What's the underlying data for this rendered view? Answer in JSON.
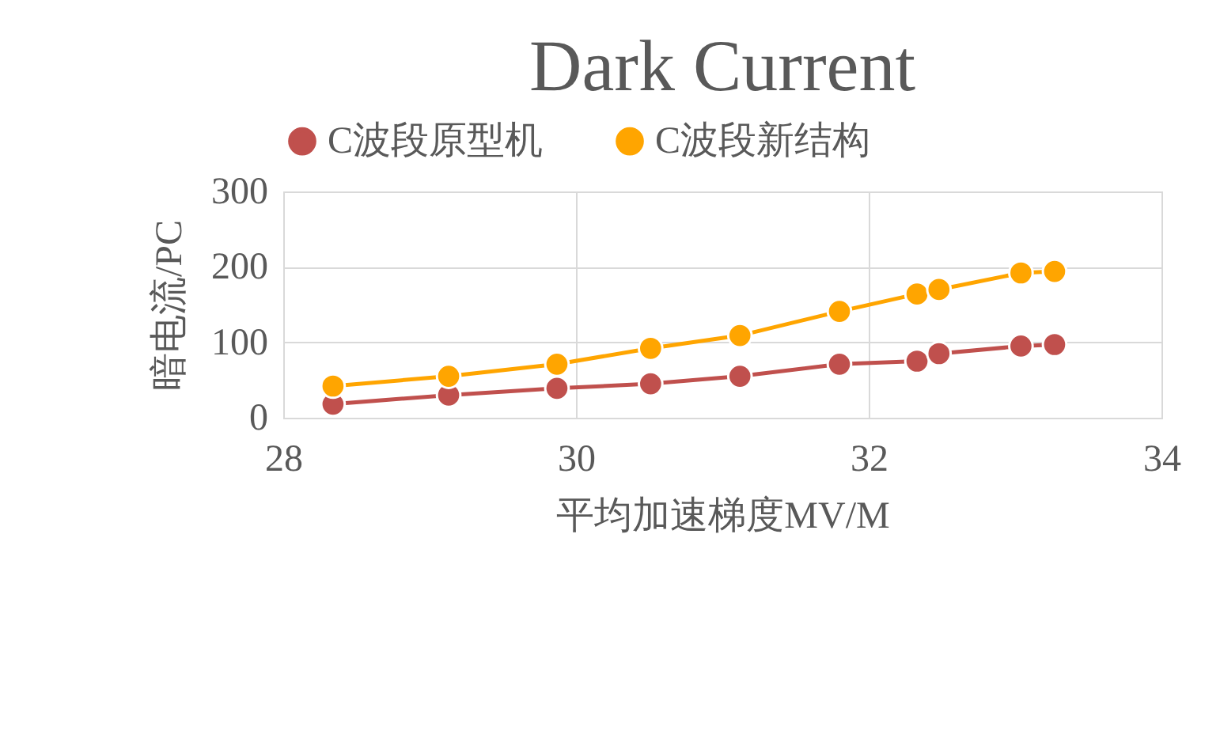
{
  "chart_data": {
    "type": "line",
    "title": "Dark Current",
    "xlabel": "平均加速梯度MV/M",
    "ylabel": "暗电流/PC",
    "x": [
      28.34,
      29.13,
      29.87,
      30.51,
      31.12,
      31.8,
      32.33,
      32.48,
      33.04,
      33.27
    ],
    "series": [
      {
        "name": "C波段原型机",
        "color": "#c0504d",
        "values": [
          18,
          30,
          39,
          45,
          55,
          71,
          75,
          85,
          95,
          97
        ]
      },
      {
        "name": "C波段新结构",
        "color": "#ffa500",
        "values": [
          42,
          55,
          71,
          92,
          109,
          141,
          164,
          170,
          192,
          194
        ]
      }
    ],
    "xlim": [
      28,
      34
    ],
    "xticks": [
      28,
      30,
      32,
      34
    ],
    "ylim": [
      0,
      300
    ],
    "yticks": [
      0,
      100,
      200,
      300
    ],
    "grid": true,
    "legend": "top",
    "marker": "circle",
    "line_style": "solid"
  }
}
